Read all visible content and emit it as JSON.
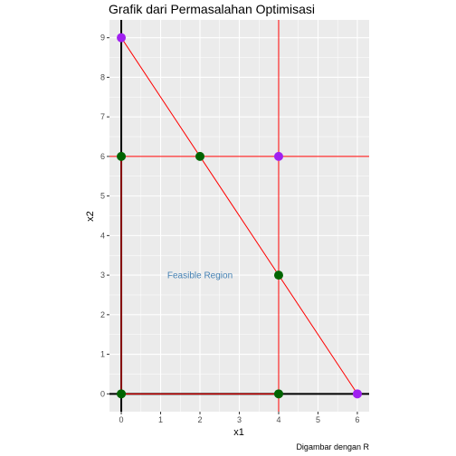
{
  "chart_data": {
    "type": "scatter",
    "title": "Grafik dari Permasalahan Optimisasi",
    "xlabel": "x1",
    "ylabel": "x2",
    "caption": "Digambar dengan R",
    "xlim": [
      -0.3,
      6.3
    ],
    "ylim": [
      -0.45,
      9.45
    ],
    "xticks": [
      0,
      1,
      2,
      3,
      4,
      5,
      6
    ],
    "yticks": [
      0,
      1,
      2,
      3,
      4,
      5,
      6,
      7,
      8,
      9
    ],
    "grid": true,
    "colors": {
      "panel": "#ebebeb",
      "grid": "#ffffff",
      "constraint": "#ff0000",
      "axes": "#000000",
      "feasible_point": "#006400",
      "infeasible_point": "#a020f0",
      "annotation": "#4682b4"
    },
    "constraint_lines": [
      {
        "type": "vertical",
        "x": 4
      },
      {
        "type": "horizontal",
        "y": 6
      },
      {
        "type": "segment",
        "x": [
          0,
          6
        ],
        "y": [
          9,
          0
        ]
      },
      {
        "type": "segment",
        "x": [
          0,
          4
        ],
        "y": [
          0,
          0
        ]
      },
      {
        "type": "segment",
        "x": [
          0,
          0
        ],
        "y": [
          0,
          6
        ]
      }
    ],
    "series": [
      {
        "x": [
          0,
          0,
          2,
          4,
          4
        ],
        "y": [
          0,
          6,
          6,
          3,
          0
        ],
        "color": "#006400"
      },
      {
        "x": [
          0,
          4,
          6
        ],
        "y": [
          9,
          6,
          0
        ],
        "color": "#a020f0"
      }
    ],
    "annotations": [
      {
        "text": "Feasible Region",
        "x": 2,
        "y": 3
      }
    ]
  }
}
